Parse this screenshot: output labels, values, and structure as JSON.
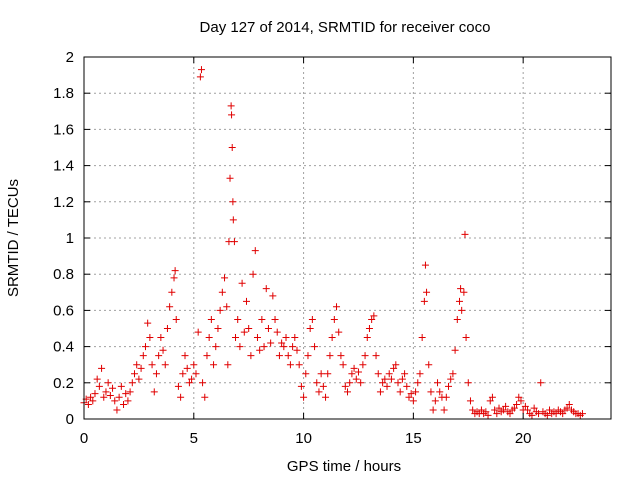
{
  "chart_data": {
    "type": "scatter",
    "title": "Day 127 of 2014, SRMTID for receiver coco",
    "xlabel": "GPS time / hours",
    "ylabel": "SRMTID / TECUs",
    "xlim": [
      0,
      24
    ],
    "ylim": [
      0,
      2
    ],
    "xticks": [
      0,
      5,
      10,
      15,
      20
    ],
    "xtick_labels": [
      "0",
      "5",
      "10",
      "15",
      "20"
    ],
    "yticks": [
      0,
      0.2,
      0.4,
      0.6,
      0.8,
      1,
      1.2,
      1.4,
      1.6,
      1.8,
      2
    ],
    "ytick_labels": [
      "0",
      "0.2",
      "0.4",
      "0.6",
      "0.8",
      "1",
      "1.2",
      "1.4",
      "1.6",
      "1.8",
      "2"
    ],
    "grid": true,
    "marker": "+",
    "color": "#e00000",
    "series": [
      {
        "name": "SRMTID",
        "points": [
          [
            0.0,
            0.09
          ],
          [
            0.1,
            0.11
          ],
          [
            0.2,
            0.08
          ],
          [
            0.3,
            0.12
          ],
          [
            0.4,
            0.1
          ],
          [
            0.5,
            0.14
          ],
          [
            0.6,
            0.22
          ],
          [
            0.7,
            0.18
          ],
          [
            0.8,
            0.28
          ],
          [
            0.9,
            0.12
          ],
          [
            1.0,
            0.15
          ],
          [
            1.1,
            0.2
          ],
          [
            1.2,
            0.13
          ],
          [
            1.3,
            0.17
          ],
          [
            1.4,
            0.1
          ],
          [
            1.5,
            0.05
          ],
          [
            1.6,
            0.12
          ],
          [
            1.7,
            0.18
          ],
          [
            1.8,
            0.08
          ],
          [
            1.9,
            0.14
          ],
          [
            2.0,
            0.1
          ],
          [
            2.1,
            0.15
          ],
          [
            2.2,
            0.2
          ],
          [
            2.3,
            0.25
          ],
          [
            2.4,
            0.3
          ],
          [
            2.5,
            0.22
          ],
          [
            2.6,
            0.28
          ],
          [
            2.7,
            0.35
          ],
          [
            2.8,
            0.4
          ],
          [
            2.9,
            0.53
          ],
          [
            3.0,
            0.45
          ],
          [
            3.1,
            0.3
          ],
          [
            3.2,
            0.15
          ],
          [
            3.3,
            0.25
          ],
          [
            3.4,
            0.35
          ],
          [
            3.5,
            0.45
          ],
          [
            3.6,
            0.38
          ],
          [
            3.7,
            0.3
          ],
          [
            3.8,
            0.5
          ],
          [
            3.9,
            0.62
          ],
          [
            4.0,
            0.7
          ],
          [
            4.1,
            0.78
          ],
          [
            4.15,
            0.82
          ],
          [
            4.2,
            0.55
          ],
          [
            4.3,
            0.18
          ],
          [
            4.4,
            0.12
          ],
          [
            4.5,
            0.25
          ],
          [
            4.6,
            0.35
          ],
          [
            4.7,
            0.28
          ],
          [
            4.8,
            0.2
          ],
          [
            4.9,
            0.22
          ],
          [
            5.0,
            0.3
          ],
          [
            5.1,
            0.25
          ],
          [
            5.2,
            0.48
          ],
          [
            5.3,
            1.89
          ],
          [
            5.35,
            1.93
          ],
          [
            5.4,
            0.2
          ],
          [
            5.5,
            0.12
          ],
          [
            5.6,
            0.35
          ],
          [
            5.7,
            0.45
          ],
          [
            5.8,
            0.55
          ],
          [
            5.9,
            0.3
          ],
          [
            6.0,
            0.4
          ],
          [
            6.1,
            0.5
          ],
          [
            6.2,
            0.6
          ],
          [
            6.3,
            0.7
          ],
          [
            6.4,
            0.78
          ],
          [
            6.5,
            0.62
          ],
          [
            6.55,
            0.3
          ],
          [
            6.6,
            0.98
          ],
          [
            6.65,
            1.33
          ],
          [
            6.7,
            1.73
          ],
          [
            6.72,
            1.68
          ],
          [
            6.75,
            1.5
          ],
          [
            6.78,
            1.2
          ],
          [
            6.8,
            1.1
          ],
          [
            6.85,
            0.98
          ],
          [
            6.9,
            0.45
          ],
          [
            7.0,
            0.55
          ],
          [
            7.1,
            0.4
          ],
          [
            7.2,
            0.75
          ],
          [
            7.3,
            0.48
          ],
          [
            7.4,
            0.65
          ],
          [
            7.5,
            0.5
          ],
          [
            7.6,
            0.35
          ],
          [
            7.7,
            0.8
          ],
          [
            7.8,
            0.93
          ],
          [
            7.9,
            0.45
          ],
          [
            8.0,
            0.38
          ],
          [
            8.1,
            0.55
          ],
          [
            8.2,
            0.4
          ],
          [
            8.3,
            0.72
          ],
          [
            8.4,
            0.5
          ],
          [
            8.5,
            0.42
          ],
          [
            8.6,
            0.68
          ],
          [
            8.7,
            0.55
          ],
          [
            8.8,
            0.48
          ],
          [
            8.9,
            0.35
          ],
          [
            9.0,
            0.42
          ],
          [
            9.1,
            0.4
          ],
          [
            9.2,
            0.45
          ],
          [
            9.3,
            0.35
          ],
          [
            9.4,
            0.3
          ],
          [
            9.5,
            0.4
          ],
          [
            9.6,
            0.45
          ],
          [
            9.7,
            0.38
          ],
          [
            9.8,
            0.3
          ],
          [
            9.9,
            0.18
          ],
          [
            10.0,
            0.12
          ],
          [
            10.1,
            0.25
          ],
          [
            10.2,
            0.35
          ],
          [
            10.3,
            0.5
          ],
          [
            10.4,
            0.55
          ],
          [
            10.5,
            0.4
          ],
          [
            10.6,
            0.2
          ],
          [
            10.7,
            0.15
          ],
          [
            10.8,
            0.25
          ],
          [
            10.9,
            0.18
          ],
          [
            11.0,
            0.12
          ],
          [
            11.1,
            0.25
          ],
          [
            11.2,
            0.35
          ],
          [
            11.3,
            0.45
          ],
          [
            11.4,
            0.55
          ],
          [
            11.5,
            0.62
          ],
          [
            11.6,
            0.48
          ],
          [
            11.7,
            0.35
          ],
          [
            11.8,
            0.3
          ],
          [
            11.9,
            0.18
          ],
          [
            12.0,
            0.15
          ],
          [
            12.1,
            0.2
          ],
          [
            12.2,
            0.25
          ],
          [
            12.3,
            0.28
          ],
          [
            12.4,
            0.22
          ],
          [
            12.5,
            0.26
          ],
          [
            12.6,
            0.2
          ],
          [
            12.7,
            0.3
          ],
          [
            12.8,
            0.35
          ],
          [
            12.9,
            0.45
          ],
          [
            13.0,
            0.5
          ],
          [
            13.1,
            0.55
          ],
          [
            13.2,
            0.57
          ],
          [
            13.3,
            0.35
          ],
          [
            13.4,
            0.25
          ],
          [
            13.5,
            0.15
          ],
          [
            13.6,
            0.2
          ],
          [
            13.7,
            0.22
          ],
          [
            13.8,
            0.18
          ],
          [
            13.9,
            0.25
          ],
          [
            14.0,
            0.22
          ],
          [
            14.1,
            0.28
          ],
          [
            14.2,
            0.3
          ],
          [
            14.3,
            0.2
          ],
          [
            14.4,
            0.15
          ],
          [
            14.5,
            0.22
          ],
          [
            14.6,
            0.25
          ],
          [
            14.7,
            0.18
          ],
          [
            14.8,
            0.12
          ],
          [
            14.9,
            0.14
          ],
          [
            15.0,
            0.1
          ],
          [
            15.1,
            0.15
          ],
          [
            15.2,
            0.2
          ],
          [
            15.3,
            0.25
          ],
          [
            15.4,
            0.45
          ],
          [
            15.5,
            0.65
          ],
          [
            15.55,
            0.85
          ],
          [
            15.6,
            0.7
          ],
          [
            15.7,
            0.3
          ],
          [
            15.8,
            0.15
          ],
          [
            15.9,
            0.05
          ],
          [
            16.0,
            0.1
          ],
          [
            16.1,
            0.2
          ],
          [
            16.2,
            0.15
          ],
          [
            16.3,
            0.12
          ],
          [
            16.4,
            0.05
          ],
          [
            16.5,
            0.12
          ],
          [
            16.6,
            0.18
          ],
          [
            16.7,
            0.22
          ],
          [
            16.8,
            0.25
          ],
          [
            16.9,
            0.38
          ],
          [
            17.0,
            0.55
          ],
          [
            17.1,
            0.65
          ],
          [
            17.15,
            0.72
          ],
          [
            17.2,
            0.6
          ],
          [
            17.3,
            0.7
          ],
          [
            17.35,
            1.02
          ],
          [
            17.4,
            0.45
          ],
          [
            17.5,
            0.2
          ],
          [
            17.6,
            0.1
          ],
          [
            17.7,
            0.05
          ],
          [
            17.8,
            0.03
          ],
          [
            17.9,
            0.04
          ],
          [
            18.0,
            0.03
          ],
          [
            18.1,
            0.05
          ],
          [
            18.2,
            0.03
          ],
          [
            18.3,
            0.04
          ],
          [
            18.4,
            0.02
          ],
          [
            18.5,
            0.1
          ],
          [
            18.6,
            0.12
          ],
          [
            18.7,
            0.05
          ],
          [
            18.8,
            0.03
          ],
          [
            18.9,
            0.06
          ],
          [
            19.0,
            0.04
          ],
          [
            19.1,
            0.05
          ],
          [
            19.2,
            0.07
          ],
          [
            19.3,
            0.04
          ],
          [
            19.4,
            0.03
          ],
          [
            19.5,
            0.05
          ],
          [
            19.6,
            0.06
          ],
          [
            19.7,
            0.08
          ],
          [
            19.8,
            0.12
          ],
          [
            19.9,
            0.1
          ],
          [
            20.0,
            0.05
          ],
          [
            20.1,
            0.07
          ],
          [
            20.2,
            0.05
          ],
          [
            20.3,
            0.03
          ],
          [
            20.4,
            0.02
          ],
          [
            20.5,
            0.06
          ],
          [
            20.6,
            0.04
          ],
          [
            20.7,
            0.03
          ],
          [
            20.8,
            0.2
          ],
          [
            20.9,
            0.04
          ],
          [
            21.0,
            0.03
          ],
          [
            21.1,
            0.02
          ],
          [
            21.2,
            0.05
          ],
          [
            21.3,
            0.03
          ],
          [
            21.4,
            0.04
          ],
          [
            21.5,
            0.03
          ],
          [
            21.6,
            0.05
          ],
          [
            21.7,
            0.04
          ],
          [
            21.8,
            0.03
          ],
          [
            21.9,
            0.05
          ],
          [
            22.0,
            0.06
          ],
          [
            22.1,
            0.08
          ],
          [
            22.2,
            0.05
          ],
          [
            22.3,
            0.04
          ],
          [
            22.4,
            0.03
          ],
          [
            22.5,
            0.03
          ],
          [
            22.6,
            0.02
          ],
          [
            22.7,
            0.03
          ]
        ]
      }
    ]
  }
}
